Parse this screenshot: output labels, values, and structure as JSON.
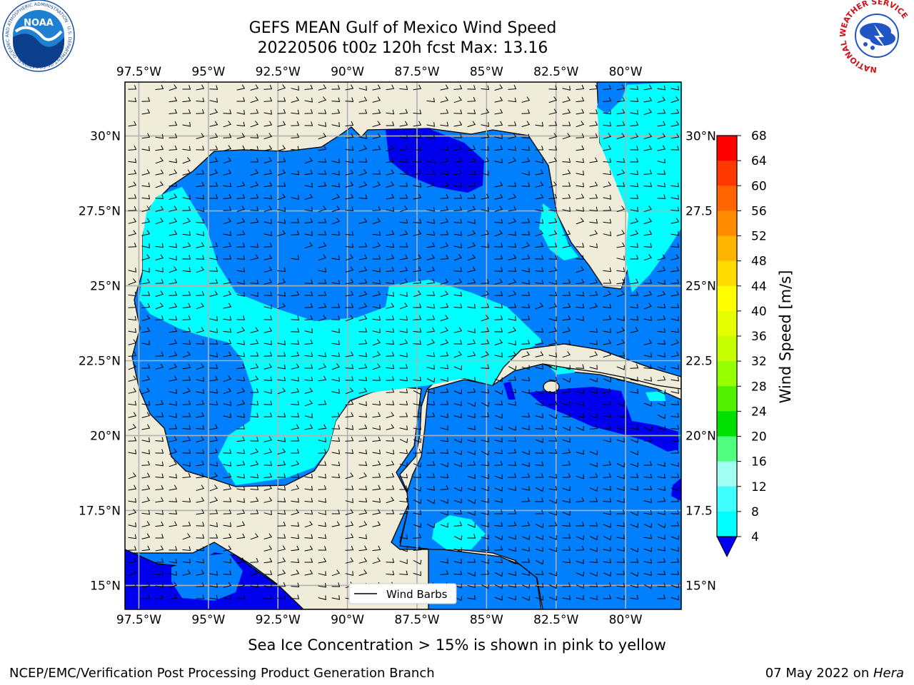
{
  "header": {
    "title_line1": "GEFS MEAN Gulf of Mexico Wind Speed",
    "title_line2": "20220506 t00z 120h fcst   Max: 13.16"
  },
  "logos": {
    "noaa_text": "NOAA",
    "noaa_ring": "NATIONAL OCEANIC AND ATMOSPHERIC ADMINISTRATION · U.S. DEPARTMENT OF COMMERCE",
    "nws_ring": "NATIONAL WEATHER SERVICE"
  },
  "map": {
    "lon_ticks": [
      "97.5°W",
      "95°W",
      "92.5°W",
      "90°W",
      "87.5°W",
      "85°W",
      "82.5°W",
      "80°W"
    ],
    "lat_ticks": [
      "30°N",
      "27.5°N",
      "25°N",
      "22.5°N",
      "20°N",
      "17.5°N",
      "15°N"
    ],
    "lat_ticks_right": [
      "30°N",
      "27.5",
      "25°N",
      "22.5",
      "20°N",
      "17.5",
      "15°N"
    ],
    "legend_label": "Wind Barbs",
    "colors": {
      "land": "#efedd9",
      "band_4_8": "#0080ff",
      "band_8_12": "#00ffff",
      "band_0_4": "#0000ee",
      "barb": "#000000",
      "grid": "#b0b0b0"
    }
  },
  "colorbar": {
    "label": "Wind Speed [m/s]",
    "ticks": [
      "68",
      "64",
      "60",
      "56",
      "52",
      "48",
      "44",
      "40",
      "36",
      "32",
      "28",
      "24",
      "20",
      "16",
      "12",
      "8",
      "4"
    ],
    "colors": [
      "#ff0000",
      "#ff3800",
      "#ff6400",
      "#ff8c00",
      "#ffb400",
      "#ffdc00",
      "#ffff00",
      "#e6ff00",
      "#c8ff00",
      "#96ff00",
      "#50f000",
      "#00e000",
      "#50ff80",
      "#a0fff0",
      "#40ffff",
      "#00ffff",
      "#0080ff"
    ],
    "extend_color": "#0000ee"
  },
  "footer": {
    "note": "Sea Ice Concentration > 15% is shown in pink to yellow",
    "left": "NCEP/EMC/Verification Post Processing Product Generation Branch",
    "right_date": "07 May 2022 on ",
    "right_host": "Hera"
  }
}
